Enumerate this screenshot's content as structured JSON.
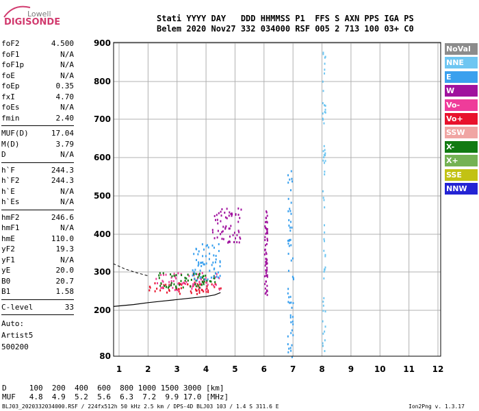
{
  "logo": {
    "top": "Lowell",
    "bottom": "DIGISONDE"
  },
  "header": {
    "line1": "Stati YYYY DAY   DDD HHMMSS P1  FFS S AXN PPS IGA PS",
    "line2": "Belem 2020 Nov27 332 034000 RSF 005 2 713 100 03+ C0"
  },
  "params": {
    "group1": [
      {
        "name": "foF2",
        "value": "4.500"
      },
      {
        "name": "foF1",
        "value": "N/A"
      },
      {
        "name": "foF1p",
        "value": "N/A"
      },
      {
        "name": "foE",
        "value": "N/A"
      },
      {
        "name": "foEp",
        "value": "0.35"
      },
      {
        "name": "fxI",
        "value": "4.70"
      },
      {
        "name": "foEs",
        "value": "N/A"
      },
      {
        "name": "fmin",
        "value": "2.40"
      }
    ],
    "group2": [
      {
        "name": "MUF(D)",
        "value": "17.04"
      },
      {
        "name": "M(D)",
        "value": "3.79"
      },
      {
        "name": "D",
        "value": "N/A"
      }
    ],
    "group3": [
      {
        "name": "h`F",
        "value": "244.3"
      },
      {
        "name": "h`F2",
        "value": "244.3"
      },
      {
        "name": "h`E",
        "value": "N/A"
      },
      {
        "name": "h`Es",
        "value": "N/A"
      }
    ],
    "group4": [
      {
        "name": "hmF2",
        "value": "246.6"
      },
      {
        "name": "hmF1",
        "value": "N/A"
      },
      {
        "name": "hmE",
        "value": "110.0"
      },
      {
        "name": "yF2",
        "value": "19.3"
      },
      {
        "name": "yF1",
        "value": "N/A"
      },
      {
        "name": "yE",
        "value": "20.0"
      },
      {
        "name": "B0",
        "value": "20.7"
      },
      {
        "name": "B1",
        "value": "1.58"
      }
    ],
    "group5": [
      {
        "name": "C-level",
        "value": "33"
      }
    ],
    "auto": [
      "Auto:",
      "Artist5",
      "500200"
    ]
  },
  "legend": [
    {
      "label": "NoVal",
      "color": "#8c8c8c"
    },
    {
      "label": "NNE",
      "color": "#6ec6f2"
    },
    {
      "label": "E",
      "color": "#3aa0ee"
    },
    {
      "label": "W",
      "color": "#a0129e"
    },
    {
      "label": "Vo-",
      "color": "#ef3c9a"
    },
    {
      "label": "Vo+",
      "color": "#e8122c"
    },
    {
      "label": "SSW",
      "color": "#f0a5a3"
    },
    {
      "label": "X-",
      "color": "#127a12"
    },
    {
      "label": "X+",
      "color": "#74b254"
    },
    {
      "label": "SSE",
      "color": "#c2c214"
    },
    {
      "label": "NNW",
      "color": "#2424d4"
    }
  ],
  "bottom": {
    "dist_line": "D     100  200  400  600  800 1000 1500 3000 [km]",
    "muf_line": "MUF   4.8  4.9  5.2  5.6  6.3  7.2  9.9 17.0 [MHz]"
  },
  "footer": "BLJ03_2020332034000.RSF / 224fx512h 50 kHz 2.5 km / DPS-4D BLJ03 103 / 1.4 S 311.6 E",
  "version": "Ion2Png v. 1.3.17",
  "chart_data": {
    "type": "scatter",
    "title": "",
    "xlabel": "",
    "ylabel": "",
    "xlim": [
      0.8,
      12.0
    ],
    "ylim": [
      80,
      900
    ],
    "x_ticks": [
      1,
      2,
      3,
      4,
      5,
      6,
      7,
      8,
      9,
      10,
      11,
      12
    ],
    "y_ticks": [
      80,
      200,
      300,
      400,
      500,
      600,
      700,
      800,
      900
    ],
    "grid": true,
    "legend_position": "right",
    "trace_profile_solid": {
      "x": [
        0.8,
        1.5,
        2.0,
        2.5,
        3.0,
        3.5,
        4.0,
        4.3,
        4.5
      ],
      "y": [
        210,
        215,
        220,
        224,
        228,
        232,
        236,
        240,
        246
      ]
    },
    "trace_profile_dashed": {
      "x": [
        0.8,
        1.2,
        1.6,
        2.0
      ],
      "y": [
        322,
        308,
        298,
        290
      ]
    },
    "echo_clusters": [
      {
        "class": "Vo+",
        "x": [
          2.0,
          4.5
        ],
        "y": [
          245,
          275
        ]
      },
      {
        "class": "Vo-",
        "x": [
          2.2,
          4.5
        ],
        "y": [
          255,
          300
        ]
      },
      {
        "class": "X-",
        "x": [
          2.3,
          4.3
        ],
        "y": [
          260,
          300
        ]
      },
      {
        "class": "E",
        "x": [
          3.5,
          4.5
        ],
        "y": [
          280,
          380
        ]
      },
      {
        "class": "W",
        "x": [
          4.2,
          5.2
        ],
        "y": [
          380,
          470
        ]
      },
      {
        "class": "W",
        "x": [
          6.0,
          6.1
        ],
        "y": [
          240,
          470
        ]
      },
      {
        "class": "E",
        "x": [
          6.8,
          7.0
        ],
        "y": [
          80,
          600
        ]
      },
      {
        "class": "NNE",
        "x": [
          8.0,
          8.1
        ],
        "y": [
          80,
          900
        ]
      }
    ]
  }
}
